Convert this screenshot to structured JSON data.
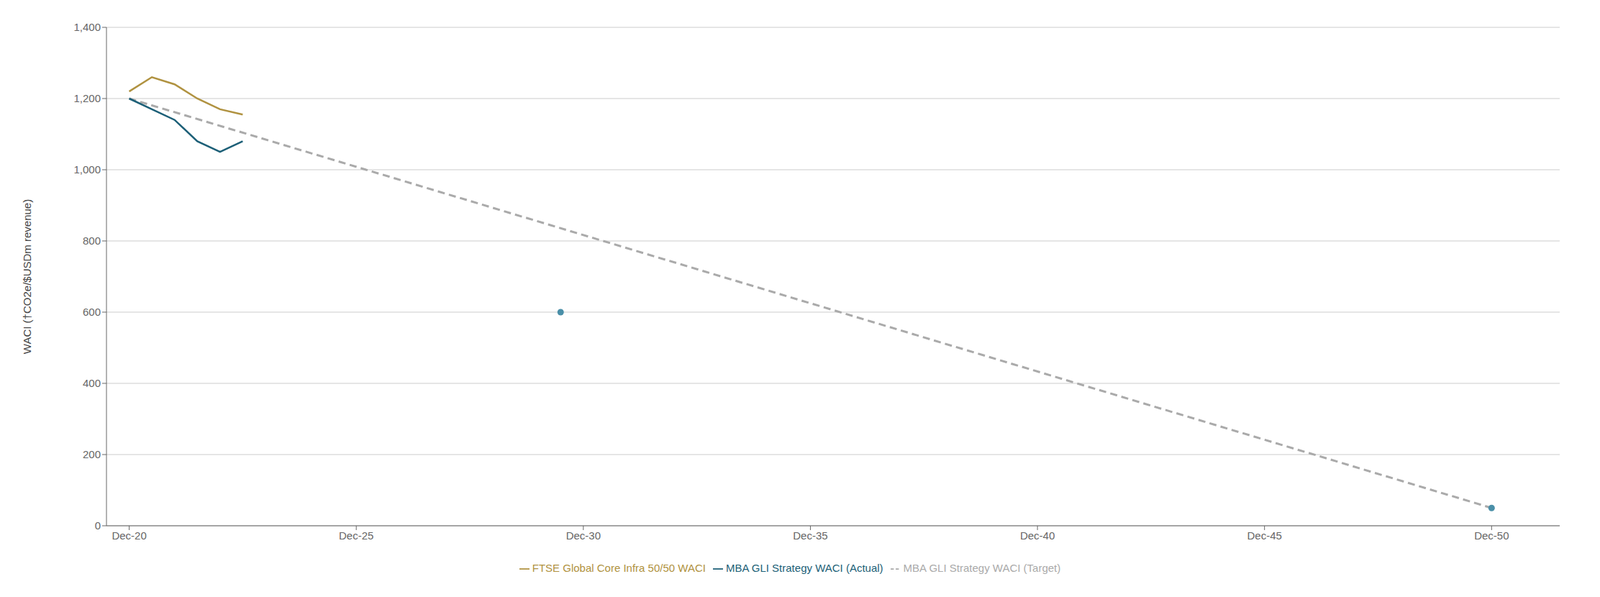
{
  "chart_data": {
    "type": "line",
    "y_label": "WACI (†CO2e/$USDm revenue)",
    "xlim": [
      2019.5,
      2051.5
    ],
    "xticks": [
      {
        "value": 2020,
        "label": "Dec-20"
      },
      {
        "value": 2025,
        "label": "Dec-25"
      },
      {
        "value": 2030,
        "label": "Dec-30"
      },
      {
        "value": 2035,
        "label": "Dec-35"
      },
      {
        "value": 2040,
        "label": "Dec-40"
      },
      {
        "value": 2045,
        "label": "Dec-45"
      },
      {
        "value": 2050,
        "label": "Dec-50"
      }
    ],
    "ylim": [
      0,
      1400
    ],
    "yticks": [
      0,
      200,
      400,
      600,
      800,
      {
        "value": 1000,
        "label": "1,000"
      },
      {
        "value": 1200,
        "label": "1,200"
      },
      {
        "value": 1400,
        "label": "1,400"
      }
    ],
    "grid": true,
    "legend": "bottom",
    "series": [
      {
        "name": "MBA GLI Strategy WACI (Target)",
        "color": "#aaaaaa",
        "line_style": "dashed",
        "x": [
          2020,
          2050
        ],
        "values": [
          1200,
          50
        ]
      },
      {
        "name": "MBA GLI Strategy WACI (Actual)",
        "color": "#1c5f77",
        "line_style": "solid",
        "x": [
          2020,
          2020.5,
          2021,
          2021.5,
          2022,
          2022.5
        ],
        "values": [
          1200,
          1170,
          1140,
          1080,
          1050,
          1080
        ]
      },
      {
        "name": "FTSE Global Core Infra 50/50 WACI",
        "color": "#b09240",
        "line_style": "solid",
        "x": [
          2020,
          2020.5,
          2021,
          2021.5,
          2022,
          2022.5
        ],
        "values": [
          1220,
          1260,
          1240,
          1200,
          1170,
          1155
        ]
      },
      {
        "type": "scatter",
        "marker": "circle",
        "color": "#4a8fa8",
        "x": [
          2029.5,
          2050
        ],
        "values": [
          600,
          50
        ]
      }
    ]
  }
}
